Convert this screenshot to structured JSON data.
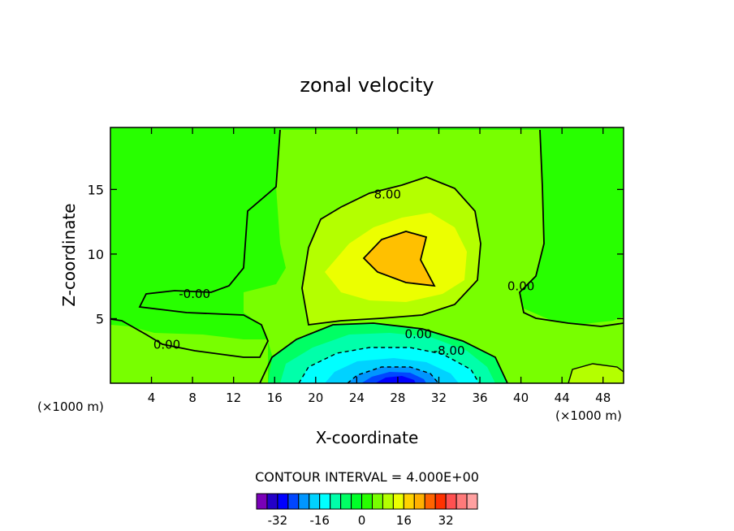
{
  "chart_data": {
    "type": "heatmap",
    "subtype": "filled-contour",
    "title": "zonal velocity",
    "xlabel": "X-coordinate",
    "ylabel": "Z-coordinate",
    "x_unit_left": "(×1000 m)",
    "x_unit_right": "(×1000 m)",
    "xlim": [
      0,
      50
    ],
    "ylim": [
      0,
      19.8
    ],
    "x_ticks": [
      4,
      8,
      12,
      16,
      20,
      24,
      28,
      32,
      36,
      40,
      44,
      48
    ],
    "y_ticks": [
      5,
      10,
      15
    ],
    "contour_interval_text": "CONTOUR INTERVAL = 4.000E+00",
    "contour_labels": [
      {
        "text": "8.00",
        "x": 27,
        "z": 14.6
      },
      {
        "text": "-0.00",
        "x": 8.2,
        "z": 6.9
      },
      {
        "text": "0.00",
        "x": 5.5,
        "z": 3.0
      },
      {
        "text": "0.00",
        "x": 40,
        "z": 7.5
      },
      {
        "text": "0.00",
        "x": 30,
        "z": 3.8
      },
      {
        "text": "-8.00",
        "x": 33,
        "z": 2.5
      }
    ],
    "features": [
      {
        "name": "positive jet maximum",
        "x": 28.5,
        "z": 10,
        "value_range": [
          12,
          16
        ]
      },
      {
        "name": "negative core near surface",
        "x": 28.5,
        "z": 0.5,
        "value_range": [
          -32,
          -24
        ]
      }
    ],
    "colorbar": {
      "levels": [
        -36,
        -32,
        -28,
        -24,
        -20,
        -16,
        -12,
        -8,
        -4,
        0,
        4,
        8,
        12,
        16,
        20,
        24,
        28,
        32,
        36
      ],
      "tick_values": [
        -32,
        -16,
        0,
        16,
        32
      ],
      "tick_labels": [
        "-32",
        "-16",
        "0",
        "16",
        "32"
      ],
      "colors": [
        "#7a00b8",
        "#2400c8",
        "#0000ff",
        "#0046ff",
        "#0096ff",
        "#00d2ff",
        "#00ffff",
        "#00ffaa",
        "#00ff64",
        "#00ff28",
        "#28ff00",
        "#78ff00",
        "#b4ff00",
        "#ecff00",
        "#ffd200",
        "#ffb000",
        "#ff6400",
        "#ff3200",
        "#ff5050",
        "#ff7a7a",
        "#ffa0a0"
      ]
    }
  }
}
